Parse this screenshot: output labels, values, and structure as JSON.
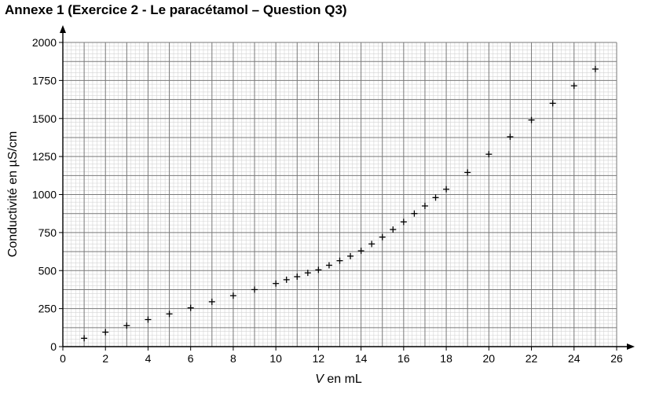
{
  "title": "Annexe 1 (Exercice 2 - Le paracétamol – Question Q3)",
  "chart_data": {
    "type": "scatter",
    "xlabel_var": "V",
    "xlabel_rest": " en mL",
    "ylabel": "Conductivité en µS/cm",
    "xlim": [
      0,
      26
    ],
    "ylim": [
      0,
      2000
    ],
    "x_ticks": [
      "0",
      "2",
      "4",
      "6",
      "8",
      "10",
      "12",
      "14",
      "16",
      "18",
      "20",
      "22",
      "24",
      "26"
    ],
    "y_ticks": [
      "0",
      "250",
      "500",
      "750",
      "1000",
      "1250",
      "1500",
      "1750",
      "2000"
    ],
    "grid": true,
    "marker": "+",
    "points": [
      {
        "x": 1,
        "y": 55
      },
      {
        "x": 2,
        "y": 95
      },
      {
        "x": 3,
        "y": 138
      },
      {
        "x": 4,
        "y": 178
      },
      {
        "x": 5,
        "y": 215
      },
      {
        "x": 6,
        "y": 255
      },
      {
        "x": 7,
        "y": 295
      },
      {
        "x": 8,
        "y": 335
      },
      {
        "x": 9,
        "y": 375
      },
      {
        "x": 10,
        "y": 415
      },
      {
        "x": 10.5,
        "y": 440
      },
      {
        "x": 11,
        "y": 460
      },
      {
        "x": 11.5,
        "y": 485
      },
      {
        "x": 12,
        "y": 505
      },
      {
        "x": 12.5,
        "y": 535
      },
      {
        "x": 13,
        "y": 565
      },
      {
        "x": 13.5,
        "y": 595
      },
      {
        "x": 14,
        "y": 630
      },
      {
        "x": 14.5,
        "y": 675
      },
      {
        "x": 15,
        "y": 720
      },
      {
        "x": 15.5,
        "y": 770
      },
      {
        "x": 16,
        "y": 820
      },
      {
        "x": 16.5,
        "y": 875
      },
      {
        "x": 17,
        "y": 925
      },
      {
        "x": 17.5,
        "y": 980
      },
      {
        "x": 18,
        "y": 1035
      },
      {
        "x": 19,
        "y": 1145
      },
      {
        "x": 20,
        "y": 1265
      },
      {
        "x": 21,
        "y": 1380
      },
      {
        "x": 22,
        "y": 1490
      },
      {
        "x": 23,
        "y": 1600
      },
      {
        "x": 24,
        "y": 1715
      },
      {
        "x": 25,
        "y": 1825
      }
    ]
  }
}
